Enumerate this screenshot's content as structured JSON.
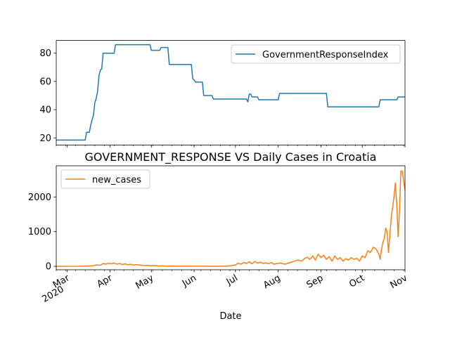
{
  "colors": {
    "gov": "#1f77b4",
    "cases": "#ff7f0e",
    "axis": "#000000",
    "legend_border": "#cccccc"
  },
  "chart_data": [
    {
      "type": "line",
      "title": "",
      "xlabel": "",
      "ylabel": "",
      "ylim": [
        15,
        89
      ],
      "xlim": [
        "2020-02-22",
        "2020-11-01"
      ],
      "yticks": [
        20,
        40,
        60,
        80
      ],
      "ytick_labels": [
        "20",
        "40",
        "60",
        "80"
      ],
      "grid": false,
      "legend": "top-right",
      "series": [
        {
          "name": "GovernmentResponseIndex",
          "x": [
            "2020-02-22",
            "2020-03-14",
            "2020-03-15",
            "2020-03-17",
            "2020-03-18",
            "2020-03-19",
            "2020-03-20",
            "2020-03-21",
            "2020-03-22",
            "2020-03-23",
            "2020-03-24",
            "2020-03-25",
            "2020-03-26",
            "2020-03-27",
            "2020-03-28",
            "2020-03-29",
            "2020-04-04",
            "2020-04-05",
            "2020-04-06",
            "2020-04-30",
            "2020-05-01",
            "2020-05-07",
            "2020-05-08",
            "2020-05-13",
            "2020-05-14",
            "2020-05-30",
            "2020-05-31",
            "2020-06-01",
            "2020-06-02",
            "2020-06-07",
            "2020-06-08",
            "2020-06-14",
            "2020-06-15",
            "2020-07-09",
            "2020-07-10",
            "2020-07-11",
            "2020-07-12",
            "2020-07-13",
            "2020-07-17",
            "2020-07-18",
            "2020-08-01",
            "2020-08-02",
            "2020-09-05",
            "2020-09-06",
            "2020-10-13",
            "2020-10-14",
            "2020-10-26",
            "2020-10-27",
            "2020-11-01"
          ],
          "y": [
            18.5,
            18.5,
            24,
            24,
            29,
            33,
            36,
            45,
            48,
            53,
            64,
            68,
            69,
            80,
            80,
            80,
            80,
            86,
            86,
            86,
            82,
            82,
            84,
            84,
            72,
            72,
            62,
            61,
            59.5,
            59.5,
            50,
            50,
            47.5,
            47.5,
            45.5,
            51,
            51,
            49,
            49,
            47,
            47,
            51.5,
            51.5,
            42,
            42,
            47,
            47,
            49,
            49
          ]
        }
      ]
    },
    {
      "type": "line",
      "title": "GOVERNMENT_RESPONSE VS Daily Cases in Croatia",
      "xlabel": "Date",
      "ylabel": "",
      "ylim": [
        -100,
        2900
      ],
      "xlim": [
        "2020-02-22",
        "2020-11-01"
      ],
      "yticks": [
        0,
        1000,
        2000
      ],
      "ytick_labels": [
        "0",
        "1000",
        "2000"
      ],
      "xtick_labels": [
        {
          "label": "Mar",
          "sub": "2020",
          "x": "2020-03-01"
        },
        {
          "label": "Apr",
          "sub": "",
          "x": "2020-04-01"
        },
        {
          "label": "May",
          "sub": "",
          "x": "2020-05-01"
        },
        {
          "label": "Jun",
          "sub": "",
          "x": "2020-06-01"
        },
        {
          "label": "Jul",
          "sub": "",
          "x": "2020-07-01"
        },
        {
          "label": "Aug",
          "sub": "",
          "x": "2020-08-01"
        },
        {
          "label": "Sep",
          "sub": "",
          "x": "2020-09-01"
        },
        {
          "label": "Oct",
          "sub": "",
          "x": "2020-10-01"
        },
        {
          "label": "Nov",
          "sub": "",
          "x": "2020-11-01"
        }
      ],
      "grid": false,
      "legend": "top-left",
      "series": [
        {
          "name": "new_cases",
          "x": [
            "2020-02-22",
            "2020-03-10",
            "2020-03-20",
            "2020-03-22",
            "2020-03-25",
            "2020-03-27",
            "2020-03-29",
            "2020-03-31",
            "2020-04-02",
            "2020-04-04",
            "2020-04-06",
            "2020-04-08",
            "2020-04-10",
            "2020-04-12",
            "2020-04-14",
            "2020-04-16",
            "2020-04-18",
            "2020-04-20",
            "2020-04-22",
            "2020-04-24",
            "2020-04-26",
            "2020-04-28",
            "2020-04-30",
            "2020-05-03",
            "2020-05-06",
            "2020-05-09",
            "2020-05-12",
            "2020-05-15",
            "2020-05-20",
            "2020-05-30",
            "2020-06-10",
            "2020-06-20",
            "2020-06-25",
            "2020-06-28",
            "2020-07-01",
            "2020-07-03",
            "2020-07-05",
            "2020-07-07",
            "2020-07-09",
            "2020-07-11",
            "2020-07-13",
            "2020-07-15",
            "2020-07-17",
            "2020-07-19",
            "2020-07-21",
            "2020-07-23",
            "2020-07-25",
            "2020-07-27",
            "2020-07-29",
            "2020-07-31",
            "2020-08-03",
            "2020-08-06",
            "2020-08-09",
            "2020-08-12",
            "2020-08-15",
            "2020-08-18",
            "2020-08-20",
            "2020-08-22",
            "2020-08-24",
            "2020-08-26",
            "2020-08-28",
            "2020-08-30",
            "2020-09-01",
            "2020-09-03",
            "2020-09-05",
            "2020-09-07",
            "2020-09-09",
            "2020-09-11",
            "2020-09-13",
            "2020-09-15",
            "2020-09-17",
            "2020-09-19",
            "2020-09-21",
            "2020-09-23",
            "2020-09-25",
            "2020-09-27",
            "2020-09-29",
            "2020-10-01",
            "2020-10-03",
            "2020-10-05",
            "2020-10-07",
            "2020-10-09",
            "2020-10-11",
            "2020-10-13",
            "2020-10-14",
            "2020-10-15",
            "2020-10-16",
            "2020-10-17",
            "2020-10-18",
            "2020-10-19",
            "2020-10-20",
            "2020-10-21",
            "2020-10-22",
            "2020-10-23",
            "2020-10-24",
            "2020-10-25",
            "2020-10-26",
            "2020-10-27",
            "2020-10-28",
            "2020-10-29",
            "2020-10-30",
            "2020-11-01"
          ],
          "y": [
            0,
            2,
            15,
            40,
            30,
            80,
            60,
            90,
            70,
            95,
            60,
            80,
            50,
            70,
            40,
            60,
            30,
            50,
            40,
            30,
            20,
            30,
            15,
            20,
            10,
            15,
            5,
            8,
            5,
            3,
            2,
            1,
            5,
            20,
            40,
            90,
            60,
            110,
            80,
            130,
            70,
            140,
            90,
            120,
            80,
            100,
            70,
            110,
            60,
            80,
            90,
            60,
            100,
            140,
            180,
            150,
            220,
            260,
            200,
            300,
            180,
            350,
            250,
            320,
            200,
            280,
            150,
            300,
            200,
            250,
            150,
            220,
            180,
            250,
            200,
            230,
            150,
            300,
            250,
            450,
            400,
            550,
            500,
            350,
            200,
            500,
            700,
            800,
            1100,
            1000,
            400,
            900,
            1400,
            1700,
            2000,
            2400,
            1800,
            850,
            1600,
            2750,
            2750,
            2200
          ]
        }
      ]
    }
  ]
}
